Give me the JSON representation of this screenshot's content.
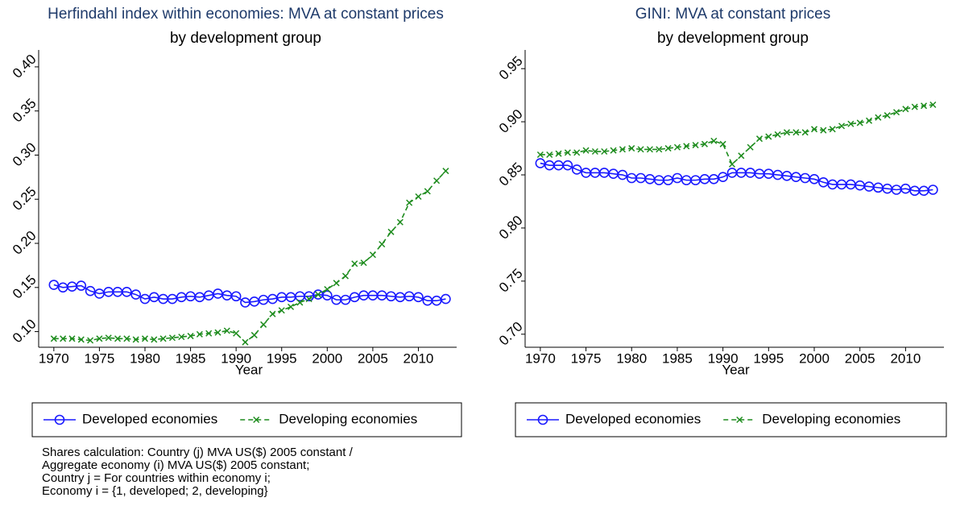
{
  "chart_data": [
    {
      "type": "line",
      "title": "Herfindahl index within economies: MVA at constant prices",
      "subtitle": "by development group",
      "x_label": "Year",
      "x": [
        1970,
        1971,
        1972,
        1973,
        1974,
        1975,
        1976,
        1977,
        1978,
        1979,
        1980,
        1981,
        1982,
        1983,
        1984,
        1985,
        1986,
        1987,
        1988,
        1989,
        1990,
        1991,
        1992,
        1993,
        1994,
        1995,
        1996,
        1997,
        1998,
        1999,
        2000,
        2001,
        2002,
        2003,
        2004,
        2005,
        2006,
        2007,
        2008,
        2009,
        2010,
        2011,
        2012,
        2013
      ],
      "xlim": [
        1968.6,
        2014.2
      ],
      "xticks": [
        1970,
        1975,
        1980,
        1985,
        1990,
        1995,
        2000,
        2005,
        2010
      ],
      "ylim": [
        0.085,
        0.41
      ],
      "yticks": [
        {
          "value": 0.1,
          "label": "0.10"
        },
        0.15,
        {
          "value": 0.2,
          "label": "0.20"
        },
        0.25,
        {
          "value": 0.3,
          "label": "0.30"
        },
        0.35,
        {
          "value": 0.4,
          "label": "0.40"
        }
      ],
      "legend": "bottom",
      "series": [
        {
          "name": "Developed economies",
          "color": "#1a1aff",
          "marker": "circle",
          "dash": false,
          "values": [
            0.153,
            0.15,
            0.151,
            0.152,
            0.146,
            0.143,
            0.145,
            0.145,
            0.145,
            0.142,
            0.137,
            0.139,
            0.137,
            0.137,
            0.139,
            0.14,
            0.139,
            0.141,
            0.143,
            0.141,
            0.14,
            0.133,
            0.134,
            0.136,
            0.137,
            0.139,
            0.139,
            0.14,
            0.14,
            0.142,
            0.141,
            0.136,
            0.136,
            0.139,
            0.141,
            0.141,
            0.141,
            0.14,
            0.139,
            0.14,
            0.139,
            0.135,
            0.135,
            0.137
          ]
        },
        {
          "name": "Developing economies",
          "color": "#1e8c1e",
          "marker": "x",
          "dash": true,
          "values": [
            0.092,
            0.092,
            0.092,
            0.091,
            0.09,
            0.092,
            0.093,
            0.092,
            0.092,
            0.091,
            0.092,
            0.091,
            0.092,
            0.093,
            0.094,
            0.095,
            0.097,
            0.098,
            0.099,
            0.101,
            0.098,
            0.088,
            0.096,
            0.108,
            0.12,
            0.124,
            0.128,
            0.133,
            0.137,
            0.142,
            0.148,
            0.155,
            0.163,
            0.177,
            0.178,
            0.187,
            0.199,
            0.213,
            0.224,
            0.246,
            0.253,
            0.259,
            0.271,
            0.282
          ]
        }
      ],
      "note": [
        "Shares calculation: Country (j) MVA US($) 2005 constant /",
        "Aggregate economy (i) MVA US($) 2005 constant;",
        "Country j = For countries within economy i;",
        "Economy i = {1, developed; 2, developing}"
      ]
    },
    {
      "type": "line",
      "title": "GINI: MVA at constant prices",
      "subtitle": "by development group",
      "x_label": "Year",
      "x": [
        1970,
        1971,
        1972,
        1973,
        1974,
        1975,
        1976,
        1977,
        1978,
        1979,
        1980,
        1981,
        1982,
        1983,
        1984,
        1985,
        1986,
        1987,
        1988,
        1989,
        1990,
        1991,
        1992,
        1993,
        1994,
        1995,
        1996,
        1997,
        1998,
        1999,
        2000,
        2001,
        2002,
        2003,
        2004,
        2005,
        2006,
        2007,
        2008,
        2009,
        2010,
        2011,
        2012,
        2013
      ],
      "xlim": [
        1968.6,
        2014.2
      ],
      "xticks": [
        1970,
        1975,
        1980,
        1985,
        1990,
        1995,
        2000,
        2005,
        2010
      ],
      "ylim": [
        0.69,
        0.96
      ],
      "yticks": [
        {
          "value": 0.7,
          "label": "0.70"
        },
        0.75,
        {
          "value": 0.8,
          "label": "0.80"
        },
        0.85,
        {
          "value": 0.9,
          "label": "0.90"
        },
        0.95
      ],
      "legend": "bottom",
      "series": [
        {
          "name": "Developed economies",
          "color": "#1a1aff",
          "marker": "circle",
          "dash": false,
          "values": [
            0.861,
            0.859,
            0.859,
            0.859,
            0.855,
            0.852,
            0.852,
            0.852,
            0.851,
            0.85,
            0.847,
            0.847,
            0.846,
            0.845,
            0.845,
            0.847,
            0.845,
            0.845,
            0.846,
            0.846,
            0.848,
            0.852,
            0.852,
            0.852,
            0.851,
            0.851,
            0.85,
            0.849,
            0.848,
            0.847,
            0.846,
            0.843,
            0.841,
            0.841,
            0.841,
            0.84,
            0.839,
            0.838,
            0.837,
            0.836,
            0.837,
            0.835,
            0.835,
            0.836
          ]
        },
        {
          "name": "Developing economies",
          "color": "#1e8c1e",
          "marker": "x",
          "dash": true,
          "values": [
            0.869,
            0.869,
            0.87,
            0.871,
            0.871,
            0.873,
            0.872,
            0.872,
            0.873,
            0.874,
            0.875,
            0.874,
            0.874,
            0.874,
            0.875,
            0.876,
            0.877,
            0.878,
            0.879,
            0.882,
            0.879,
            0.86,
            0.868,
            0.876,
            0.884,
            0.886,
            0.888,
            0.89,
            0.89,
            0.89,
            0.893,
            0.892,
            0.893,
            0.896,
            0.898,
            0.899,
            0.901,
            0.904,
            0.906,
            0.909,
            0.912,
            0.914,
            0.915,
            0.916
          ]
        }
      ]
    }
  ]
}
